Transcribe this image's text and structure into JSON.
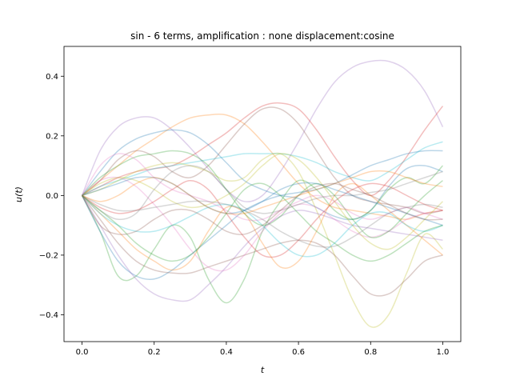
{
  "chart_data": {
    "type": "line",
    "title": "sin - 6 terms, amplification : none displacement:cosine",
    "xlabel": "t",
    "ylabel": "u(t)",
    "xlim": [
      -0.05,
      1.05
    ],
    "ylim": [
      -0.49,
      0.5
    ],
    "xticks": [
      0.0,
      0.2,
      0.4,
      0.6,
      0.8,
      1.0
    ],
    "xtick_labels": [
      "0.0",
      "0.2",
      "0.4",
      "0.6",
      "0.8",
      "1.0"
    ],
    "yticks": [
      -0.4,
      -0.2,
      0.0,
      0.2,
      0.4
    ],
    "ytick_labels": [
      "−0.4",
      "−0.2",
      "0.0",
      "0.2",
      "0.4"
    ],
    "grid": false,
    "legend": "none",
    "line_opacity": 0.3,
    "x": [
      0.0,
      0.05,
      0.1,
      0.15,
      0.2,
      0.25,
      0.3,
      0.35,
      0.4,
      0.45,
      0.5,
      0.55,
      0.6,
      0.65,
      0.7,
      0.75,
      0.8,
      0.85,
      0.9,
      0.95,
      1.0
    ],
    "series": [
      {
        "color": "#9467bd",
        "values": [
          0.0,
          0.15,
          0.23,
          0.26,
          0.26,
          0.22,
          0.16,
          0.09,
          0.02,
          -0.02,
          0.0,
          0.08,
          0.18,
          0.29,
          0.38,
          0.43,
          0.45,
          0.45,
          0.42,
          0.35,
          0.23
        ]
      },
      {
        "color": "#ff7f0e",
        "values": [
          0.0,
          0.05,
          0.1,
          0.15,
          0.19,
          0.23,
          0.26,
          0.27,
          0.27,
          0.24,
          0.18,
          0.11,
          0.04,
          -0.01,
          -0.04,
          -0.05,
          -0.06,
          -0.07,
          -0.08,
          -0.06,
          -0.05
        ]
      },
      {
        "color": "#d62728",
        "values": [
          0.0,
          0.03,
          0.06,
          0.08,
          0.09,
          0.1,
          0.13,
          0.17,
          0.21,
          0.26,
          0.3,
          0.31,
          0.29,
          0.22,
          0.13,
          0.05,
          0.0,
          0.05,
          0.13,
          0.22,
          0.3
        ]
      },
      {
        "color": "#8c564b",
        "values": [
          0.0,
          0.05,
          0.12,
          0.15,
          0.13,
          0.08,
          0.06,
          0.1,
          0.17,
          0.24,
          0.29,
          0.29,
          0.24,
          0.15,
          0.06,
          0.0,
          -0.02,
          -0.03,
          -0.04,
          -0.06,
          -0.05
        ]
      },
      {
        "color": "#1f77b4",
        "values": [
          0.0,
          0.08,
          0.15,
          0.19,
          0.21,
          0.22,
          0.21,
          0.17,
          0.11,
          0.05,
          0.02,
          0.0,
          -0.01,
          -0.04,
          -0.07,
          -0.08,
          -0.05,
          0.03,
          0.09,
          0.1,
          0.08
        ]
      },
      {
        "color": "#17becf",
        "values": [
          0.0,
          0.03,
          0.05,
          0.07,
          0.09,
          0.1,
          0.11,
          0.12,
          0.13,
          0.14,
          0.14,
          0.14,
          0.13,
          0.11,
          0.08,
          0.06,
          0.05,
          0.08,
          0.12,
          0.16,
          0.18
        ]
      },
      {
        "color": "#bcbd22",
        "values": [
          0.0,
          0.02,
          0.05,
          0.08,
          0.1,
          0.11,
          0.1,
          0.08,
          0.05,
          0.06,
          0.12,
          0.14,
          0.08,
          -0.05,
          -0.2,
          -0.35,
          -0.44,
          -0.4,
          -0.26,
          -0.13,
          -0.18
        ]
      },
      {
        "color": "#2ca02c",
        "values": [
          0.0,
          -0.12,
          -0.27,
          -0.27,
          -0.18,
          -0.1,
          -0.14,
          -0.28,
          -0.36,
          -0.28,
          -0.12,
          -0.02,
          0.05,
          0.02,
          -0.05,
          -0.08,
          -0.05,
          0.02,
          0.06,
          0.04,
          0.1
        ]
      },
      {
        "color": "#1f77b4",
        "values": [
          0.0,
          -0.12,
          -0.22,
          -0.27,
          -0.28,
          -0.25,
          -0.2,
          -0.15,
          -0.1,
          -0.05,
          -0.02,
          0.0,
          0.01,
          0.02,
          0.04,
          0.07,
          0.1,
          0.12,
          0.14,
          0.15,
          0.15
        ]
      },
      {
        "color": "#9467bd",
        "values": [
          0.0,
          -0.1,
          -0.2,
          -0.28,
          -0.33,
          -0.35,
          -0.35,
          -0.3,
          -0.24,
          -0.17,
          -0.11,
          -0.07,
          -0.05,
          -0.06,
          -0.08,
          -0.1,
          -0.11,
          -0.12,
          -0.13,
          -0.14,
          -0.15
        ]
      },
      {
        "color": "#8c564b",
        "values": [
          0.0,
          -0.08,
          -0.16,
          -0.22,
          -0.25,
          -0.26,
          -0.26,
          -0.24,
          -0.22,
          -0.2,
          -0.18,
          -0.16,
          -0.15,
          -0.16,
          -0.2,
          -0.27,
          -0.33,
          -0.33,
          -0.28,
          -0.22,
          -0.2
        ]
      },
      {
        "color": "#ff7f0e",
        "values": [
          0.0,
          -0.06,
          -0.12,
          -0.18,
          -0.22,
          -0.25,
          -0.22,
          -0.12,
          -0.04,
          -0.06,
          -0.16,
          -0.24,
          -0.22,
          -0.12,
          0.0,
          0.04,
          0.0,
          -0.05,
          -0.1,
          -0.15,
          -0.2
        ]
      },
      {
        "color": "#e377c2",
        "values": [
          0.0,
          0.05,
          0.06,
          0.03,
          -0.03,
          -0.1,
          -0.18,
          -0.24,
          -0.25,
          -0.2,
          -0.12,
          -0.06,
          -0.03,
          -0.04,
          -0.08,
          -0.12,
          -0.14,
          -0.12,
          -0.08,
          -0.06,
          -0.05
        ]
      },
      {
        "color": "#7f7f7f",
        "values": [
          0.0,
          -0.05,
          -0.08,
          -0.06,
          0.02,
          0.08,
          0.1,
          0.08,
          0.02,
          -0.04,
          -0.06,
          -0.05,
          -0.03,
          -0.01,
          0.0,
          0.0,
          0.01,
          0.02,
          0.04,
          0.06,
          0.08
        ]
      },
      {
        "color": "#d62728",
        "values": [
          0.0,
          -0.04,
          -0.06,
          -0.05,
          -0.02,
          0.02,
          0.05,
          0.02,
          -0.06,
          -0.14,
          -0.2,
          -0.2,
          -0.15,
          -0.08,
          -0.02,
          0.02,
          0.04,
          0.03,
          0.0,
          -0.03,
          -0.05
        ]
      },
      {
        "color": "#17becf",
        "values": [
          0.0,
          -0.06,
          -0.1,
          -0.12,
          -0.12,
          -0.1,
          -0.07,
          -0.04,
          -0.03,
          -0.05,
          -0.1,
          -0.16,
          -0.2,
          -0.2,
          -0.16,
          -0.1,
          -0.06,
          -0.06,
          -0.1,
          -0.12,
          -0.1
        ]
      },
      {
        "color": "#2ca02c",
        "values": [
          0.0,
          0.06,
          0.1,
          0.13,
          0.14,
          0.15,
          0.14,
          0.1,
          0.02,
          -0.06,
          -0.1,
          -0.07,
          0.0,
          0.04,
          0.0,
          -0.08,
          -0.14,
          -0.12,
          -0.06,
          0.0,
          0.05
        ]
      },
      {
        "color": "#bcbd22",
        "values": [
          0.0,
          0.04,
          0.06,
          0.05,
          0.02,
          -0.02,
          -0.04,
          -0.03,
          0.0,
          0.04,
          0.1,
          0.14,
          0.12,
          0.06,
          -0.02,
          -0.1,
          -0.16,
          -0.18,
          -0.14,
          -0.08,
          -0.02
        ]
      },
      {
        "color": "#e377c2",
        "values": [
          0.0,
          0.1,
          0.14,
          0.12,
          0.06,
          0.02,
          0.0,
          -0.02,
          -0.05,
          -0.08,
          -0.08,
          -0.05,
          -0.02,
          0.0,
          -0.02,
          -0.06,
          -0.08,
          -0.06,
          -0.04,
          -0.06,
          -0.08
        ]
      },
      {
        "color": "#7f7f7f",
        "values": [
          0.0,
          -0.03,
          -0.05,
          -0.05,
          -0.04,
          -0.03,
          -0.02,
          -0.02,
          -0.03,
          -0.05,
          -0.08,
          -0.12,
          -0.15,
          -0.17,
          -0.17,
          -0.14,
          -0.1,
          -0.06,
          -0.04,
          -0.03,
          -0.04
        ]
      },
      {
        "color": "#1f77b4",
        "values": [
          0.0,
          0.02,
          0.04,
          0.06,
          0.06,
          0.04,
          0.0,
          -0.04,
          -0.06,
          -0.05,
          -0.02,
          0.02,
          0.04,
          0.04,
          0.02,
          0.0,
          -0.02,
          -0.04,
          -0.06,
          -0.08,
          -0.1
        ]
      },
      {
        "color": "#ff7f0e",
        "values": [
          0.0,
          -0.02,
          0.0,
          0.04,
          0.06,
          0.04,
          0.0,
          -0.04,
          -0.06,
          -0.06,
          -0.04,
          -0.02,
          0.0,
          0.02,
          0.04,
          0.06,
          0.08,
          0.08,
          0.06,
          0.04,
          0.03
        ]
      },
      {
        "color": "#8c564b",
        "values": [
          0.0,
          -0.1,
          -0.13,
          -0.12,
          -0.08,
          -0.05,
          -0.05,
          -0.08,
          -0.12,
          -0.13,
          -0.1,
          -0.05,
          0.0,
          0.03,
          0.04,
          0.02,
          0.0,
          -0.03,
          -0.06,
          -0.08,
          -0.08
        ]
      },
      {
        "color": "#2ca02c",
        "values": [
          0.0,
          -0.05,
          -0.1,
          -0.16,
          -0.2,
          -0.22,
          -0.2,
          -0.14,
          -0.06,
          0.02,
          0.04,
          0.0,
          -0.06,
          -0.12,
          -0.16,
          -0.2,
          -0.22,
          -0.2,
          -0.16,
          -0.12,
          -0.1
        ]
      }
    ]
  }
}
